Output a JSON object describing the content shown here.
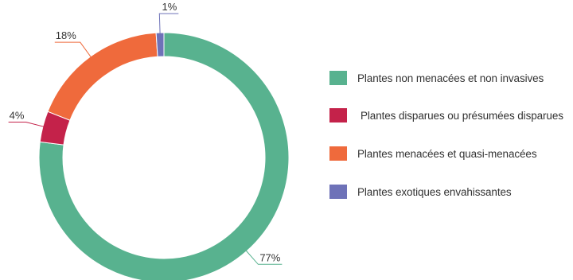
{
  "chart_data": {
    "type": "pie",
    "donut": true,
    "title": "",
    "legend_position": "right",
    "series": [
      {
        "name": "Plantes non menacées et non invasives",
        "value": 77,
        "label": "77%",
        "color": "#58b28f"
      },
      {
        "name": "Plantes disparues ou présumées disparues",
        "value": 4,
        "label": "4%",
        "color": "#c4224a"
      },
      {
        "name": "Plantes menacées et quasi-menacées",
        "value": 18,
        "label": "18%",
        "color": "#ef6a3c"
      },
      {
        "name": "Plantes exotiques envahissantes",
        "value": 1,
        "label": "1%",
        "color": "#6e72b8"
      }
    ]
  }
}
